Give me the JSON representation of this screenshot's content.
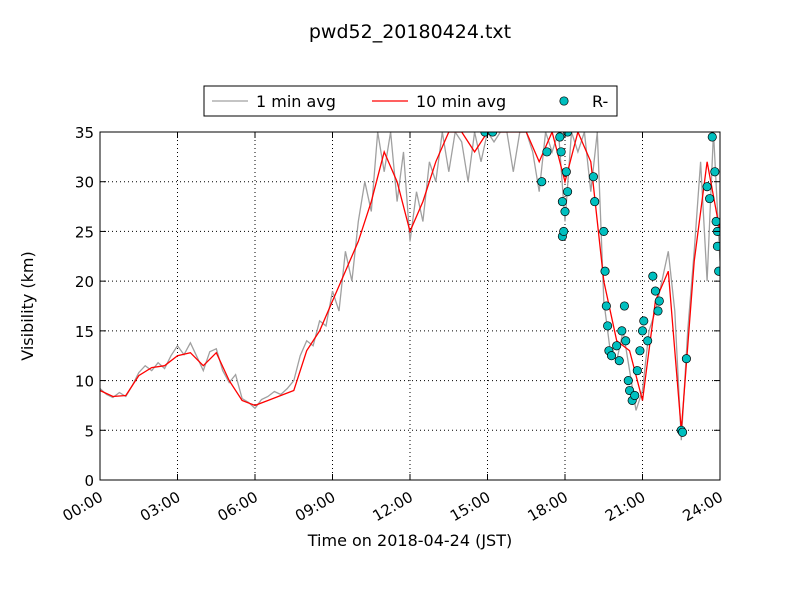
{
  "chart_data": {
    "type": "line",
    "title": "pwd52_20180424.txt",
    "xlabel": "Time on 2018-04-24 (JST)",
    "ylabel": "Visibility (km)",
    "xlim": [
      0,
      24
    ],
    "ylim": [
      0,
      35
    ],
    "xticks": [
      {
        "value": 0,
        "label": "00:00"
      },
      {
        "value": 3,
        "label": "03:00"
      },
      {
        "value": 6,
        "label": "06:00"
      },
      {
        "value": 9,
        "label": "09:00"
      },
      {
        "value": 12,
        "label": "12:00"
      },
      {
        "value": 15,
        "label": "15:00"
      },
      {
        "value": 18,
        "label": "18:00"
      },
      {
        "value": 21,
        "label": "21:00"
      },
      {
        "value": 24,
        "label": "24:00"
      }
    ],
    "yticks": [
      0,
      5,
      10,
      15,
      20,
      25,
      30,
      35
    ],
    "grid": true,
    "legend": "top",
    "series": [
      {
        "name": "1 min avg",
        "type": "line",
        "color": "#a0a0a0",
        "x": [
          0,
          0.25,
          0.5,
          0.75,
          1,
          1.25,
          1.5,
          1.75,
          2,
          2.25,
          2.5,
          2.75,
          3,
          3.25,
          3.5,
          3.75,
          4,
          4.25,
          4.5,
          4.75,
          5,
          5.25,
          5.5,
          5.75,
          6,
          6.25,
          6.5,
          6.75,
          7,
          7.25,
          7.5,
          7.75,
          8,
          8.25,
          8.5,
          8.75,
          9,
          9.25,
          9.5,
          9.75,
          10,
          10.25,
          10.5,
          10.75,
          11,
          11.25,
          11.5,
          11.75,
          12,
          12.25,
          12.5,
          12.75,
          13,
          13.25,
          13.5,
          13.75,
          14,
          14.25,
          14.5,
          14.75,
          15,
          15.25,
          15.5,
          15.75,
          16,
          16.25,
          16.5,
          16.75,
          17,
          17.25,
          17.5,
          17.75,
          18,
          18.25,
          18.5,
          18.75,
          19,
          19.25,
          19.5,
          19.75,
          20,
          20.25,
          20.5,
          20.75,
          21,
          21.25,
          21.5,
          21.75,
          22,
          22.25,
          22.5,
          22.75,
          23,
          23.25,
          23.5,
          23.75,
          24
        ],
        "values": [
          9.2,
          8.6,
          8.3,
          8.8,
          8.4,
          9.5,
          10.8,
          11.5,
          11,
          11.8,
          11.2,
          12.5,
          13.5,
          12.6,
          13.8,
          12.4,
          11,
          12.9,
          13.2,
          11,
          9.8,
          10.6,
          8.2,
          7.8,
          7.2,
          8.1,
          8.4,
          8.9,
          8.6,
          9.2,
          10,
          12.5,
          14,
          13.5,
          16,
          15.5,
          19,
          17,
          23,
          20,
          26,
          30,
          27,
          35,
          31,
          35,
          28,
          33,
          24,
          29,
          26,
          32,
          30,
          35,
          31,
          35,
          34,
          30,
          35,
          32,
          35,
          34,
          35,
          35,
          31,
          35,
          35,
          33,
          29,
          35,
          33,
          35,
          26,
          35,
          33,
          35,
          29,
          35,
          18,
          13,
          12,
          15,
          11,
          7,
          9,
          15,
          17,
          20,
          23,
          17,
          4,
          15,
          23,
          32,
          20,
          35,
          22
        ]
      },
      {
        "name": "10 min avg",
        "type": "line",
        "color": "#ff0000",
        "x": [
          0,
          0.5,
          1,
          1.5,
          2,
          2.5,
          3,
          3.5,
          4,
          4.5,
          5,
          5.5,
          6,
          6.5,
          7,
          7.5,
          8,
          8.5,
          9,
          9.5,
          10,
          10.5,
          11,
          11.5,
          12,
          12.5,
          13,
          13.5,
          14,
          14.5,
          15,
          15.5,
          16,
          16.5,
          17,
          17.5,
          18,
          18.5,
          19,
          19.5,
          20,
          20.5,
          21,
          21.5,
          22,
          22.5,
          23,
          23.5,
          24
        ],
        "values": [
          9,
          8.4,
          8.5,
          10.5,
          11.3,
          11.5,
          12.5,
          12.8,
          11.5,
          12.8,
          10,
          8,
          7.5,
          8,
          8.5,
          9,
          13,
          15,
          18,
          21,
          24,
          28,
          33,
          30,
          25,
          28,
          32,
          35,
          35,
          33,
          35,
          35,
          35,
          35,
          32,
          35,
          30,
          35,
          32,
          20,
          14,
          13,
          8,
          18,
          21,
          5,
          22,
          32,
          25
        ]
      },
      {
        "name": "R-",
        "type": "scatter",
        "color": "#00bfbf",
        "x": [
          14.9,
          15.2,
          17.1,
          17.3,
          17.8,
          17.85,
          17.9,
          17.9,
          17.95,
          18.0,
          18.05,
          18.1,
          18.1,
          19.1,
          19.15,
          19.5,
          19.55,
          19.6,
          19.65,
          19.7,
          19.8,
          20.0,
          20.1,
          20.2,
          20.3,
          20.35,
          20.45,
          20.5,
          20.6,
          20.7,
          20.8,
          20.9,
          21.0,
          21.05,
          21.2,
          21.4,
          21.5,
          21.6,
          21.65,
          22.5,
          22.55,
          22.7,
          23.5,
          23.6,
          23.7,
          23.8,
          23.85,
          23.9,
          23.9,
          23.95
        ],
        "values": [
          35,
          35,
          30,
          33,
          34.5,
          33,
          28,
          24.5,
          25,
          27,
          31,
          29,
          35,
          30.5,
          28,
          25,
          21,
          17.5,
          15.5,
          13,
          12.5,
          13.5,
          12,
          15,
          17.5,
          14,
          10,
          9,
          8,
          8.5,
          11,
          13,
          15,
          16,
          14,
          20.5,
          19,
          17,
          18,
          5,
          4.8,
          12.2,
          29.5,
          28.3,
          34.5,
          31,
          26,
          25,
          23.5,
          21
        ]
      }
    ]
  }
}
